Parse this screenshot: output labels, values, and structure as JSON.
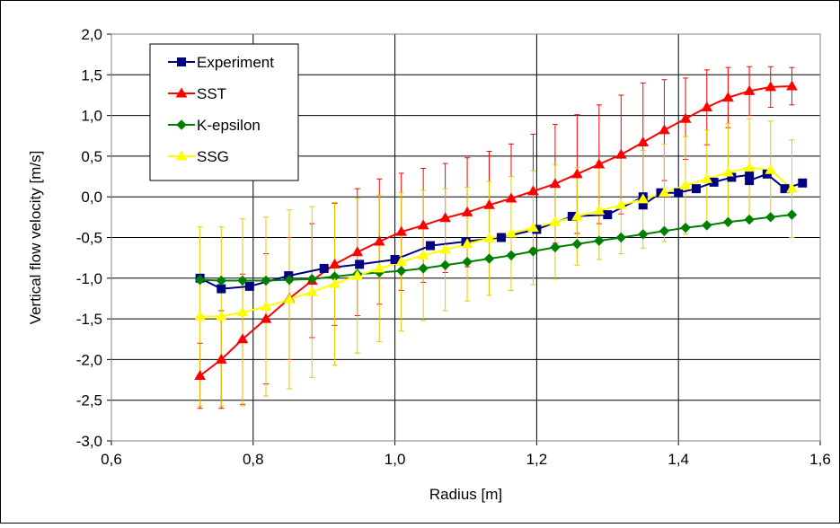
{
  "chart_data": {
    "type": "line",
    "xlabel": "Radius   [m]",
    "ylabel": "Vertical flow velocity   [m/s]",
    "xlim": [
      0.6,
      1.6
    ],
    "ylim": [
      -3.0,
      2.0
    ],
    "x_ticks": [
      "0,6",
      "0,8",
      "1,0",
      "1,2",
      "1,4",
      "1,6"
    ],
    "y_ticks": [
      "2,0",
      "1,5",
      "1,0",
      "0,5",
      "0,0",
      "-0,5",
      "-1,0",
      "-1,5",
      "-2,0",
      "-2,5",
      "-3,0"
    ],
    "grid": true,
    "legend_position": "top-left",
    "series": [
      {
        "name": "Experiment",
        "color": "#000080",
        "marker": "square",
        "x": [
          0.725,
          0.755,
          0.795,
          0.85,
          0.9,
          0.95,
          1.0,
          1.05,
          1.1,
          1.15,
          1.2,
          1.25,
          1.3,
          1.35,
          1.35,
          1.375,
          1.4,
          1.425,
          1.45,
          1.475,
          1.5,
          1.5,
          1.525,
          1.55,
          1.575
        ],
        "y": [
          -1.0,
          -1.13,
          -1.1,
          -0.97,
          -0.88,
          -0.83,
          -0.77,
          -0.6,
          -0.55,
          -0.5,
          -0.4,
          -0.24,
          -0.22,
          0.0,
          -0.1,
          0.05,
          0.05,
          0.1,
          0.18,
          0.24,
          0.27,
          0.2,
          0.28,
          0.1,
          0.17
        ],
        "error": null
      },
      {
        "name": "SST",
        "color": "#ff0000",
        "marker": "triangle",
        "x": [
          0.725,
          0.755,
          0.785,
          0.818,
          0.851,
          0.883,
          0.915,
          0.947,
          0.978,
          1.009,
          1.04,
          1.071,
          1.102,
          1.133,
          1.164,
          1.195,
          1.226,
          1.257,
          1.288,
          1.319,
          1.35,
          1.38,
          1.41,
          1.44,
          1.47,
          1.5,
          1.53,
          1.56
        ],
        "y": [
          -2.2,
          -2.0,
          -1.75,
          -1.5,
          -1.25,
          -1.03,
          -0.83,
          -0.68,
          -0.55,
          -0.43,
          -0.35,
          -0.26,
          -0.19,
          -0.1,
          -0.02,
          0.07,
          0.16,
          0.28,
          0.4,
          0.52,
          0.67,
          0.82,
          0.96,
          1.1,
          1.22,
          1.3,
          1.35,
          1.36
        ],
        "error": [
          0.4,
          0.6,
          0.8,
          0.8,
          0.75,
          0.7,
          0.75,
          0.78,
          0.77,
          0.72,
          0.7,
          0.67,
          0.67,
          0.66,
          0.67,
          0.7,
          0.73,
          0.73,
          0.73,
          0.73,
          0.73,
          0.62,
          0.5,
          0.46,
          0.37,
          0.3,
          0.25,
          0.23
        ]
      },
      {
        "name": "K-epsilon",
        "color": "#008000",
        "marker": "diamond",
        "x": [
          0.725,
          0.755,
          0.785,
          0.818,
          0.851,
          0.883,
          0.915,
          0.947,
          0.978,
          1.009,
          1.04,
          1.071,
          1.102,
          1.133,
          1.164,
          1.195,
          1.226,
          1.257,
          1.288,
          1.319,
          1.35,
          1.38,
          1.41,
          1.44,
          1.47,
          1.5,
          1.53,
          1.56
        ],
        "y": [
          -1.02,
          -1.03,
          -1.03,
          -1.03,
          -1.02,
          -1.01,
          -0.98,
          -0.95,
          -0.93,
          -0.91,
          -0.88,
          -0.84,
          -0.8,
          -0.76,
          -0.72,
          -0.67,
          -0.62,
          -0.58,
          -0.54,
          -0.5,
          -0.46,
          -0.42,
          -0.38,
          -0.35,
          -0.31,
          -0.28,
          -0.25,
          -0.22
        ],
        "error": null
      },
      {
        "name": "SSG",
        "color": "#ffff00",
        "marker": "triangle",
        "x": [
          0.725,
          0.755,
          0.785,
          0.818,
          0.851,
          0.883,
          0.915,
          0.947,
          0.978,
          1.009,
          1.04,
          1.071,
          1.102,
          1.133,
          1.164,
          1.195,
          1.226,
          1.257,
          1.288,
          1.319,
          1.35,
          1.38,
          1.41,
          1.44,
          1.47,
          1.5,
          1.53,
          1.56
        ],
        "y": [
          -1.47,
          -1.47,
          -1.42,
          -1.35,
          -1.26,
          -1.17,
          -1.07,
          -0.97,
          -0.88,
          -0.8,
          -0.72,
          -0.65,
          -0.58,
          -0.51,
          -0.45,
          -0.38,
          -0.31,
          -0.24,
          -0.17,
          -0.1,
          -0.03,
          0.05,
          0.14,
          0.22,
          0.3,
          0.36,
          0.33,
          0.1
        ],
        "error": [
          1.1,
          1.1,
          1.15,
          1.1,
          1.1,
          1.05,
          1.0,
          0.95,
          0.9,
          0.85,
          0.8,
          0.75,
          0.7,
          0.7,
          0.7,
          0.7,
          0.7,
          0.6,
          0.6,
          0.6,
          0.6,
          0.6,
          0.6,
          0.6,
          0.6,
          0.6,
          0.6,
          0.6
        ]
      }
    ]
  }
}
